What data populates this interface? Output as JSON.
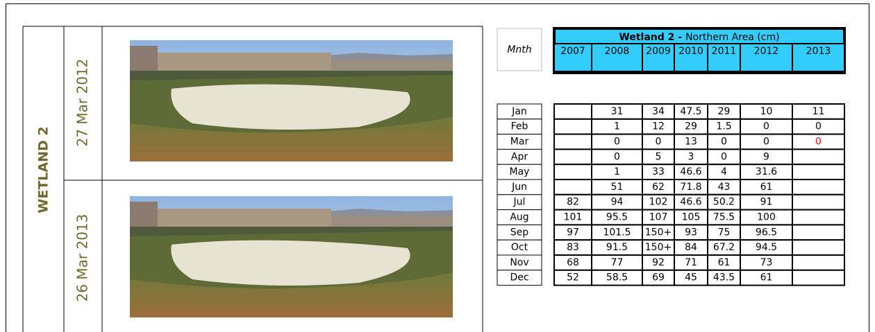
{
  "label": "WETLAND 2",
  "photos": [
    {
      "date": "27 Mar 2012"
    },
    {
      "date": "26 Mar 2013"
    }
  ],
  "table": {
    "month_header": "Mnth",
    "title_bold": "Wetland 2 -",
    "title_rest": "Northern Area (cm)",
    "header_color": "#33ccff",
    "years": [
      "2007",
      "2008",
      "2009",
      "2010",
      "2011",
      "2012",
      "2013"
    ],
    "highlight_cells": [
      [
        2,
        6
      ]
    ],
    "highlight_color": "#ff0000",
    "rows": [
      {
        "month": "Jan",
        "values": [
          null,
          "31",
          "34",
          "47.5",
          "29",
          "10",
          "11"
        ]
      },
      {
        "month": "Feb",
        "values": [
          null,
          "1",
          "12",
          "29",
          "1.5",
          "0",
          "0"
        ]
      },
      {
        "month": "Mar",
        "values": [
          null,
          "0",
          "0",
          "13",
          "0",
          "0",
          "0"
        ]
      },
      {
        "month": "Apr",
        "values": [
          null,
          "0",
          "5",
          "3",
          "0",
          "9",
          null
        ]
      },
      {
        "month": "May",
        "values": [
          null,
          "1",
          "33",
          "46.6",
          "4",
          "31.6",
          null
        ]
      },
      {
        "month": "Jun",
        "values": [
          null,
          "51",
          "62",
          "71.8",
          "43",
          "61",
          null
        ]
      },
      {
        "month": "Jul",
        "values": [
          "82",
          "94",
          "102",
          "46.6",
          "50.2",
          "91",
          null
        ]
      },
      {
        "month": "Aug",
        "values": [
          "101",
          "95.5",
          "107",
          "105",
          "75.5",
          "100",
          null
        ]
      },
      {
        "month": "Sep",
        "values": [
          "97",
          "101.5",
          "150+",
          "93",
          "75",
          "96.5",
          null
        ]
      },
      {
        "month": "Oct",
        "values": [
          "83",
          "91.5",
          "150+",
          "84",
          "67.2",
          "94.5",
          null
        ]
      },
      {
        "month": "Nov",
        "values": [
          "68",
          "77",
          "92",
          "71",
          "61",
          "73",
          null
        ]
      },
      {
        "month": "Dec",
        "values": [
          "52",
          "58.5",
          "69",
          "45",
          "43.5",
          "61",
          null
        ]
      }
    ]
  }
}
